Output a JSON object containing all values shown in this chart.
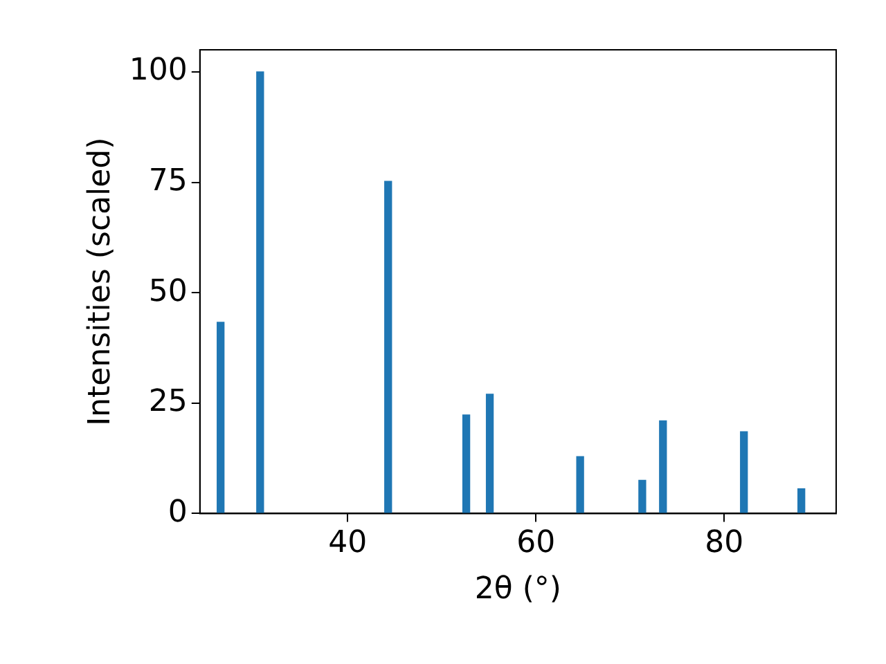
{
  "chart_data": {
    "type": "bar",
    "xlabel": "2θ (°)",
    "ylabel": "Intensities (scaled)",
    "x": [
      26.5,
      30.7,
      44.3,
      52.6,
      55.1,
      64.7,
      71.3,
      73.5,
      82.1,
      88.2
    ],
    "values": [
      43.3,
      100,
      75.2,
      22.3,
      27,
      12.9,
      7.5,
      21,
      18.5,
      5.6
    ],
    "color": "#1f77b4",
    "xlim": [
      24.3,
      91.9
    ],
    "xticks": [
      40,
      60,
      80
    ],
    "ylim": [
      0,
      105
    ],
    "yticks": [
      0,
      25,
      50,
      75,
      100
    ],
    "grid": false,
    "legend": false
  }
}
